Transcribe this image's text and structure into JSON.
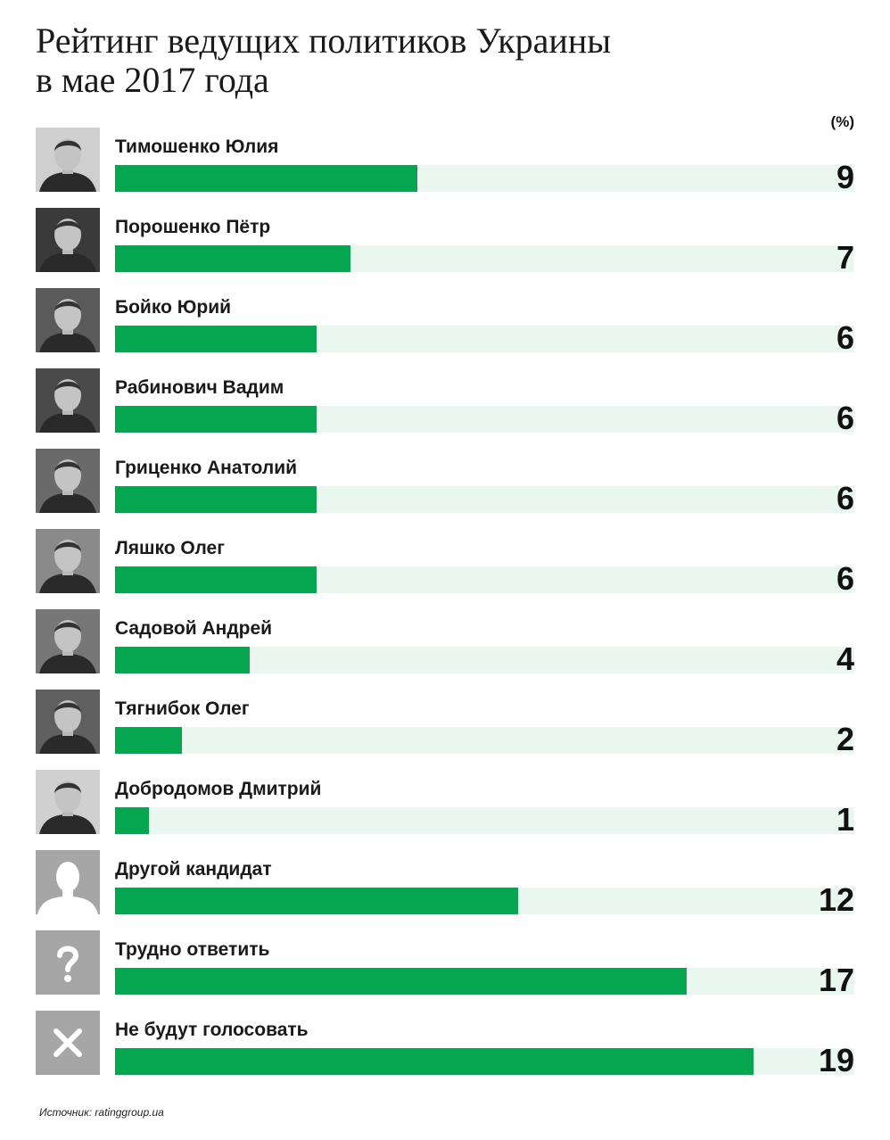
{
  "title_line1": "Рейтинг ведущих политиков Украины",
  "title_line2": "в мае 2017 года",
  "unit": "(%)",
  "source": "Источник: ratinggroup.ua",
  "colors": {
    "bar": "#06a54f",
    "track": "#eaf7f0",
    "placeholder": "#a6a6a6"
  },
  "chart_data": {
    "type": "bar",
    "orientation": "horizontal",
    "title": "Рейтинг ведущих политиков Украины в мае 2017 года",
    "unit": "(%)",
    "xlim": [
      0,
      22
    ],
    "categories": [
      "Тимошенко Юлия",
      "Порошенко Пётр",
      "Бойко Юрий",
      "Рабинович Вадим",
      "Гриценко Анатолий",
      "Ляшко Олег",
      "Садовой Андрей",
      "Тягнибок Олег",
      "Добродомов Дмитрий",
      "Другой кандидат",
      "Трудно ответить",
      "Не будут голосовать"
    ],
    "values": [
      9,
      7,
      6,
      6,
      6,
      6,
      4,
      2,
      1,
      12,
      17,
      19
    ],
    "icons": [
      "portrait-photo",
      "portrait-photo",
      "portrait-photo",
      "portrait-photo",
      "portrait-photo",
      "portrait-photo",
      "portrait-photo",
      "portrait-photo",
      "portrait-photo",
      "person-silhouette-icon",
      "question-mark-icon",
      "cross-icon"
    ]
  }
}
